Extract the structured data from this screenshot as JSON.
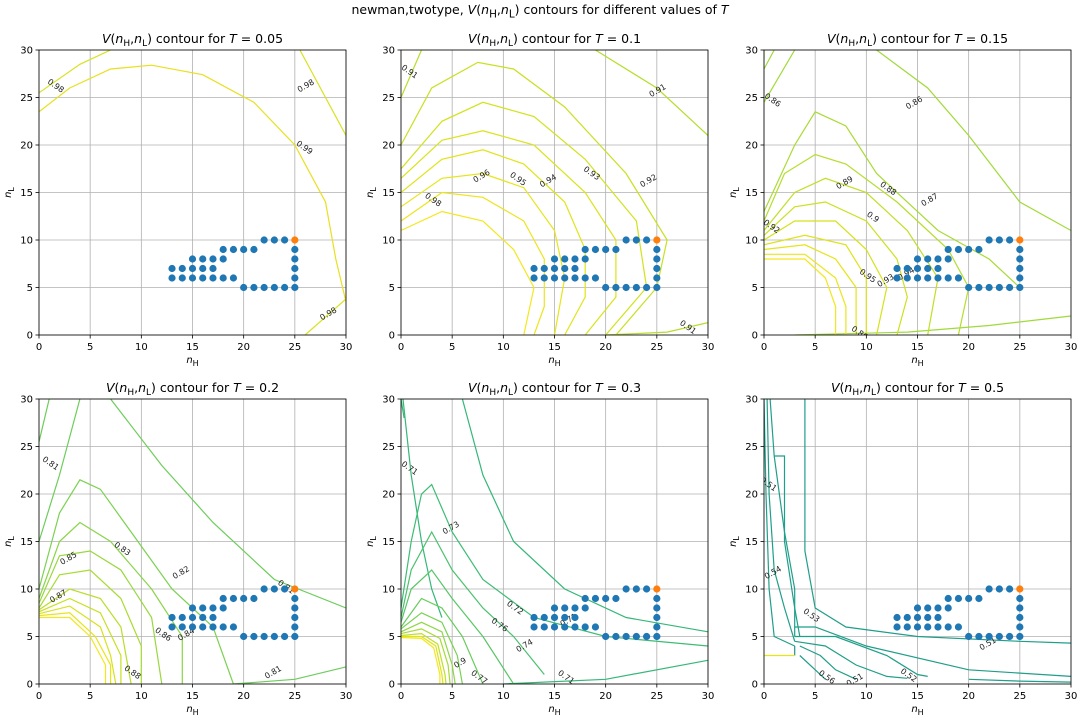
{
  "suptitle": "newman,twotype, V(n_H,n_L) contours for different values of T",
  "chart_data": [
    {
      "type": "contour",
      "title": "V(n_H,n_L) contour for T = 0.05",
      "T": 0.05,
      "xlabel": "n_H",
      "ylabel": "n_L",
      "xlim": [
        0,
        30
      ],
      "ylim": [
        0,
        30
      ],
      "xticks": [
        0,
        5,
        10,
        15,
        20,
        25,
        30
      ],
      "yticks": [
        0,
        5,
        10,
        15,
        20,
        25,
        30
      ],
      "grid": true,
      "contour_labels": [
        "0.98",
        "0.98",
        "0.99",
        "0.98"
      ],
      "states": [
        [
          13,
          7
        ],
        [
          14,
          7
        ],
        [
          15,
          7
        ],
        [
          16,
          7
        ],
        [
          17,
          7
        ],
        [
          13,
          6
        ],
        [
          14,
          6
        ],
        [
          15,
          6
        ],
        [
          16,
          6
        ],
        [
          17,
          6
        ],
        [
          18,
          6
        ],
        [
          19,
          6
        ],
        [
          15,
          8
        ],
        [
          16,
          8
        ],
        [
          17,
          8
        ],
        [
          18,
          8
        ],
        [
          18,
          9
        ],
        [
          19,
          9
        ],
        [
          20,
          9
        ],
        [
          21,
          9
        ],
        [
          22,
          10
        ],
        [
          23,
          10
        ],
        [
          24,
          10
        ],
        [
          20,
          5
        ],
        [
          21,
          5
        ],
        [
          22,
          5
        ],
        [
          23,
          5
        ],
        [
          24,
          5
        ],
        [
          25,
          5
        ],
        [
          25,
          6
        ],
        [
          25,
          7
        ],
        [
          25,
          8
        ],
        [
          25,
          9
        ]
      ],
      "goal": [
        25,
        10
      ]
    },
    {
      "type": "contour",
      "title": "V(n_H,n_L) contour for T = 0.1",
      "T": 0.1,
      "xlabel": "n_H",
      "ylabel": "n_L",
      "xlim": [
        0,
        30
      ],
      "ylim": [
        0,
        30
      ],
      "xticks": [
        0,
        5,
        10,
        15,
        20,
        25,
        30
      ],
      "yticks": [
        0,
        5,
        10,
        15,
        20,
        25,
        30
      ],
      "grid": true,
      "contour_labels": [
        "0.91",
        "0.91",
        "0.98",
        "0.96",
        "0.95",
        "0.94",
        "0.93",
        "0.92",
        "0.91"
      ],
      "states": [
        [
          13,
          7
        ],
        [
          14,
          7
        ],
        [
          15,
          7
        ],
        [
          16,
          7
        ],
        [
          17,
          7
        ],
        [
          13,
          6
        ],
        [
          14,
          6
        ],
        [
          15,
          6
        ],
        [
          16,
          6
        ],
        [
          17,
          6
        ],
        [
          18,
          6
        ],
        [
          19,
          6
        ],
        [
          15,
          8
        ],
        [
          16,
          8
        ],
        [
          17,
          8
        ],
        [
          18,
          8
        ],
        [
          18,
          9
        ],
        [
          19,
          9
        ],
        [
          20,
          9
        ],
        [
          21,
          9
        ],
        [
          22,
          10
        ],
        [
          23,
          10
        ],
        [
          24,
          10
        ],
        [
          20,
          5
        ],
        [
          21,
          5
        ],
        [
          22,
          5
        ],
        [
          23,
          5
        ],
        [
          24,
          5
        ],
        [
          25,
          5
        ],
        [
          25,
          6
        ],
        [
          25,
          7
        ],
        [
          25,
          8
        ],
        [
          25,
          9
        ]
      ],
      "goal": [
        25,
        10
      ]
    },
    {
      "type": "contour",
      "title": "V(n_H,n_L) contour for T = 0.15",
      "T": 0.15,
      "xlabel": "n_H",
      "ylabel": "n_L",
      "xlim": [
        0,
        30
      ],
      "ylim": [
        0,
        30
      ],
      "xticks": [
        0,
        5,
        10,
        15,
        20,
        25,
        30
      ],
      "yticks": [
        0,
        5,
        10,
        15,
        20,
        25,
        30
      ],
      "grid": true,
      "contour_labels": [
        "0.86",
        "0.86",
        "0.92",
        "0.89",
        "0.88",
        "0.87",
        "0.9",
        "0.93",
        "0.95",
        "0.94",
        "0.86"
      ],
      "states": [
        [
          13,
          7
        ],
        [
          14,
          7
        ],
        [
          15,
          7
        ],
        [
          16,
          7
        ],
        [
          17,
          7
        ],
        [
          13,
          6
        ],
        [
          14,
          6
        ],
        [
          15,
          6
        ],
        [
          16,
          6
        ],
        [
          17,
          6
        ],
        [
          18,
          6
        ],
        [
          19,
          6
        ],
        [
          15,
          8
        ],
        [
          16,
          8
        ],
        [
          17,
          8
        ],
        [
          18,
          8
        ],
        [
          18,
          9
        ],
        [
          19,
          9
        ],
        [
          20,
          9
        ],
        [
          21,
          9
        ],
        [
          22,
          10
        ],
        [
          23,
          10
        ],
        [
          24,
          10
        ],
        [
          20,
          5
        ],
        [
          21,
          5
        ],
        [
          22,
          5
        ],
        [
          23,
          5
        ],
        [
          24,
          5
        ],
        [
          25,
          5
        ],
        [
          25,
          6
        ],
        [
          25,
          7
        ],
        [
          25,
          8
        ],
        [
          25,
          9
        ]
      ],
      "goal": [
        25,
        10
      ]
    },
    {
      "type": "contour",
      "title": "V(n_H,n_L) contour for T = 0.2",
      "T": 0.2,
      "xlabel": "n_H",
      "ylabel": "n_L",
      "xlim": [
        0,
        30
      ],
      "ylim": [
        0,
        30
      ],
      "xticks": [
        0,
        5,
        10,
        15,
        20,
        25,
        30
      ],
      "yticks": [
        0,
        5,
        10,
        15,
        20,
        25,
        30
      ],
      "grid": true,
      "contour_labels": [
        "0.81",
        "0.85",
        "0.83",
        "0.82",
        "0.86",
        "0.84",
        "0.81",
        "0.81",
        "0.88",
        "0.87"
      ],
      "states": [
        [
          13,
          7
        ],
        [
          14,
          7
        ],
        [
          15,
          7
        ],
        [
          16,
          7
        ],
        [
          17,
          7
        ],
        [
          13,
          6
        ],
        [
          14,
          6
        ],
        [
          15,
          6
        ],
        [
          16,
          6
        ],
        [
          17,
          6
        ],
        [
          18,
          6
        ],
        [
          19,
          6
        ],
        [
          15,
          8
        ],
        [
          16,
          8
        ],
        [
          17,
          8
        ],
        [
          18,
          8
        ],
        [
          18,
          9
        ],
        [
          19,
          9
        ],
        [
          20,
          9
        ],
        [
          21,
          9
        ],
        [
          22,
          10
        ],
        [
          23,
          10
        ],
        [
          24,
          10
        ],
        [
          20,
          5
        ],
        [
          21,
          5
        ],
        [
          22,
          5
        ],
        [
          23,
          5
        ],
        [
          24,
          5
        ],
        [
          25,
          5
        ],
        [
          25,
          6
        ],
        [
          25,
          7
        ],
        [
          25,
          8
        ],
        [
          25,
          9
        ]
      ],
      "goal": [
        25,
        10
      ]
    },
    {
      "type": "contour",
      "title": "V(n_H,n_L) contour for T = 0.3",
      "T": 0.3,
      "xlabel": "n_H",
      "ylabel": "n_L",
      "xlim": [
        0,
        30
      ],
      "ylim": [
        0,
        30
      ],
      "xticks": [
        0,
        5,
        10,
        15,
        20,
        25,
        30
      ],
      "yticks": [
        0,
        5,
        10,
        15,
        20,
        25,
        30
      ],
      "grid": true,
      "contour_labels": [
        "0.71",
        "0.73",
        "0.72",
        "0.74",
        "0.76",
        "0.71",
        "0.71",
        "0.9",
        "0.77"
      ],
      "states": [
        [
          13,
          7
        ],
        [
          14,
          7
        ],
        [
          15,
          7
        ],
        [
          16,
          7
        ],
        [
          17,
          7
        ],
        [
          13,
          6
        ],
        [
          14,
          6
        ],
        [
          15,
          6
        ],
        [
          16,
          6
        ],
        [
          17,
          6
        ],
        [
          18,
          6
        ],
        [
          19,
          6
        ],
        [
          15,
          8
        ],
        [
          16,
          8
        ],
        [
          17,
          8
        ],
        [
          18,
          8
        ],
        [
          18,
          9
        ],
        [
          19,
          9
        ],
        [
          20,
          9
        ],
        [
          21,
          9
        ],
        [
          22,
          10
        ],
        [
          23,
          10
        ],
        [
          24,
          10
        ],
        [
          20,
          5
        ],
        [
          21,
          5
        ],
        [
          22,
          5
        ],
        [
          23,
          5
        ],
        [
          24,
          5
        ],
        [
          25,
          5
        ],
        [
          25,
          6
        ],
        [
          25,
          7
        ],
        [
          25,
          8
        ],
        [
          25,
          9
        ]
      ],
      "goal": [
        25,
        10
      ]
    },
    {
      "type": "contour",
      "title": "V(n_H,n_L) contour for T = 0.5",
      "T": 0.5,
      "xlabel": "n_H",
      "ylabel": "n_L",
      "xlim": [
        0,
        30
      ],
      "ylim": [
        0,
        30
      ],
      "xticks": [
        0,
        5,
        10,
        15,
        20,
        25,
        30
      ],
      "yticks": [
        0,
        5,
        10,
        15,
        20,
        25,
        30
      ],
      "grid": true,
      "contour_labels": [
        "0.51",
        "0.54",
        "0.53",
        "0.51",
        "0.52",
        "0.51",
        "0.56"
      ],
      "states": [
        [
          13,
          7
        ],
        [
          14,
          7
        ],
        [
          15,
          7
        ],
        [
          16,
          7
        ],
        [
          17,
          7
        ],
        [
          13,
          6
        ],
        [
          14,
          6
        ],
        [
          15,
          6
        ],
        [
          16,
          6
        ],
        [
          17,
          6
        ],
        [
          18,
          6
        ],
        [
          19,
          6
        ],
        [
          15,
          8
        ],
        [
          16,
          8
        ],
        [
          17,
          8
        ],
        [
          18,
          8
        ],
        [
          18,
          9
        ],
        [
          19,
          9
        ],
        [
          20,
          9
        ],
        [
          21,
          9
        ],
        [
          22,
          10
        ],
        [
          23,
          10
        ],
        [
          24,
          10
        ],
        [
          20,
          5
        ],
        [
          21,
          5
        ],
        [
          22,
          5
        ],
        [
          23,
          5
        ],
        [
          24,
          5
        ],
        [
          25,
          5
        ],
        [
          25,
          6
        ],
        [
          25,
          7
        ],
        [
          25,
          8
        ],
        [
          25,
          9
        ]
      ],
      "goal": [
        25,
        10
      ]
    }
  ],
  "colors": {
    "state_marker": "#1f77b4",
    "goal_marker": "#ff7f0e",
    "grid": "#b0b0b0"
  }
}
